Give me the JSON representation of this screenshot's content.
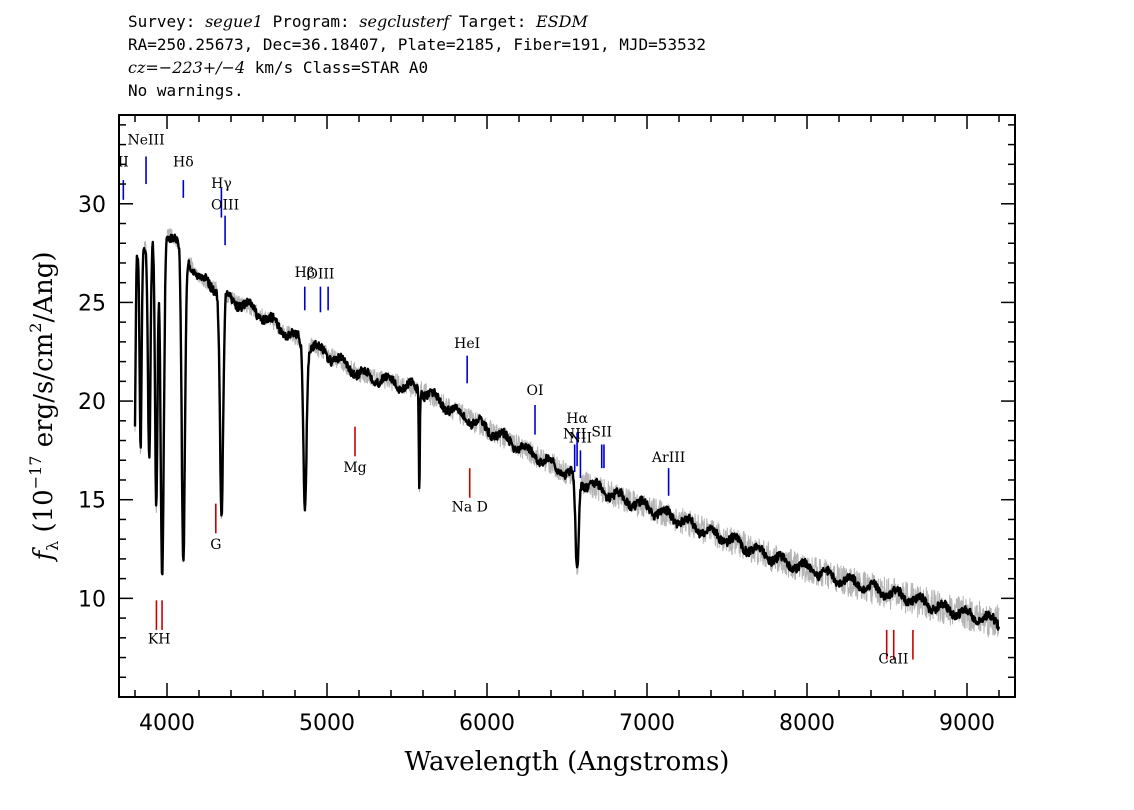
{
  "header": {
    "survey_label": "Survey:",
    "survey": "segue1",
    "program_label": "Program:",
    "program": "segclusterf",
    "target_label": "Target:",
    "target": "ESDM",
    "line2": "RA=250.25673, Dec=36.18407, Plate=2185, Fiber=191, MJD=53532",
    "cz_label": "cz=",
    "cz_value": "−223+/−4",
    "cz_rest": " km/s Class=STAR A0",
    "warnings": "No warnings."
  },
  "chart_data": {
    "type": "line",
    "xlabel": "Wavelength (Angstroms)",
    "ylabel_parts": [
      "f",
      "λ",
      " (10",
      "−17",
      " erg/s/cm",
      "2",
      "/Ang)"
    ],
    "xlim": [
      3700,
      9300
    ],
    "ylim": [
      5.0,
      34.5
    ],
    "xticks": [
      4000,
      5000,
      6000,
      7000,
      8000,
      9000
    ],
    "yticks": [
      10,
      15,
      20,
      25,
      30
    ],
    "grid": false,
    "colors": {
      "model": "#000000",
      "observed": "#b4b4b4",
      "emission_lines": "#0000cc",
      "absorption_lines": "#cc0000"
    },
    "continuum": {
      "x": [
        3800,
        3900,
        4000,
        4100,
        4200,
        4300,
        4400,
        4500,
        4600,
        4800,
        5000,
        5200,
        5400,
        5600,
        5800,
        6000,
        6200,
        6400,
        6600,
        6800,
        7000,
        7200,
        7400,
        7600,
        7800,
        8000,
        8200,
        8400,
        8600,
        8800,
        9000,
        9200
      ],
      "y": [
        27.0,
        28.4,
        28.7,
        27.7,
        26.2,
        25.8,
        25.2,
        24.8,
        24.3,
        23.2,
        22.4,
        21.4,
        21.0,
        20.5,
        19.5,
        18.6,
        17.7,
        16.8,
        15.9,
        15.2,
        14.6,
        14.0,
        13.3,
        12.7,
        12.0,
        11.5,
        11.0,
        10.5,
        10.1,
        9.6,
        9.2,
        8.8
      ]
    },
    "absorption_features": [
      {
        "center": 3798,
        "depth": 9.0,
        "width": 5
      },
      {
        "center": 3835,
        "depth": 10.0,
        "width": 6
      },
      {
        "center": 3889,
        "depth": 11.0,
        "width": 8
      },
      {
        "center": 3933,
        "depth": 14.0,
        "width": 8
      },
      {
        "center": 3970,
        "depth": 17.5,
        "width": 10
      },
      {
        "center": 4102,
        "depth": 16.0,
        "width": 10
      },
      {
        "center": 4341,
        "depth": 11.5,
        "width": 10
      },
      {
        "center": 4862,
        "depth": 8.3,
        "width": 10
      },
      {
        "center": 5577,
        "depth": 6.0,
        "width": 3
      },
      {
        "center": 6563,
        "depth": 4.8,
        "width": 10
      }
    ],
    "emission_spikes": [
      {
        "center": 5577,
        "height": 1.0
      }
    ],
    "emission_lines": [
      {
        "label": "II",
        "wavelength": 3727,
        "label_y": 31.9,
        "line_top": 31.2,
        "line_bottom": 30.2
      },
      {
        "label": "NeIII",
        "wavelength": 3869,
        "label_y": 33.0,
        "line_top": 32.4,
        "line_bottom": 31.0
      },
      {
        "label": "Hδ",
        "wavelength": 4102,
        "label_y": 31.9,
        "line_top": 31.2,
        "line_bottom": 30.3
      },
      {
        "label": "Hγ",
        "wavelength": 4340,
        "label_y": 30.8,
        "line_top": 30.8,
        "line_bottom": 29.3
      },
      {
        "label": "OIII",
        "wavelength": 4363,
        "label_y": 29.7,
        "line_top": 29.4,
        "line_bottom": 27.9
      },
      {
        "label": "Hβ",
        "wavelength": 4861,
        "label_y": 26.3,
        "line_top": 25.8,
        "line_bottom": 24.6
      },
      {
        "label": "OIII",
        "wavelength": 4959,
        "label_y": 26.2,
        "line_top": 25.8,
        "line_bottom": 24.5
      },
      {
        "label": "",
        "wavelength": 5007,
        "label_y": 0,
        "line_top": 25.8,
        "line_bottom": 24.6
      },
      {
        "label": "HeI",
        "wavelength": 5876,
        "label_y": 22.7,
        "line_top": 22.3,
        "line_bottom": 20.9
      },
      {
        "label": "OI",
        "wavelength": 6300,
        "label_y": 20.3,
        "line_top": 19.8,
        "line_bottom": 18.3
      },
      {
        "label": "NII",
        "wavelength": 6548,
        "label_y": 18.1,
        "line_top": 17.8,
        "line_bottom": 16.4
      },
      {
        "label": "Hα",
        "wavelength": 6563,
        "label_y": 18.9,
        "line_top": 18.4,
        "line_bottom": 16.7
      },
      {
        "label": "NII",
        "wavelength": 6584,
        "label_y": 17.9,
        "line_top": 17.5,
        "line_bottom": 16.1
      },
      {
        "label": "SII",
        "wavelength": 6717,
        "label_y": 18.2,
        "line_top": 17.8,
        "line_bottom": 16.6
      },
      {
        "label": "",
        "wavelength": 6731,
        "label_y": 0,
        "line_top": 17.8,
        "line_bottom": 16.6
      },
      {
        "label": "ArIII",
        "wavelength": 7135,
        "label_y": 16.9,
        "line_top": 16.6,
        "line_bottom": 15.2
      }
    ],
    "absorption_lines": [
      {
        "label": "KH",
        "label_x": 3951,
        "label_y": 7.7,
        "marks": [
          3934,
          3969
        ],
        "line_top": 9.9,
        "line_bottom": 8.4
      },
      {
        "label": "G",
        "label_x": 4305,
        "label_y": 12.5,
        "marks": [
          4305
        ],
        "line_top": 14.8,
        "line_bottom": 13.3
      },
      {
        "label": "Mg",
        "label_x": 5175,
        "label_y": 16.4,
        "marks": [
          5175
        ],
        "line_top": 18.7,
        "line_bottom": 17.2
      },
      {
        "label": "Na D",
        "label_x": 5892,
        "label_y": 14.4,
        "marks": [
          5892
        ],
        "line_top": 16.6,
        "line_bottom": 15.1
      },
      {
        "label": "CaII",
        "label_x": 8540,
        "label_y": 6.7,
        "marks": [
          8498,
          8542,
          8662
        ],
        "line_top": 8.4,
        "line_bottom": 6.9
      }
    ]
  }
}
